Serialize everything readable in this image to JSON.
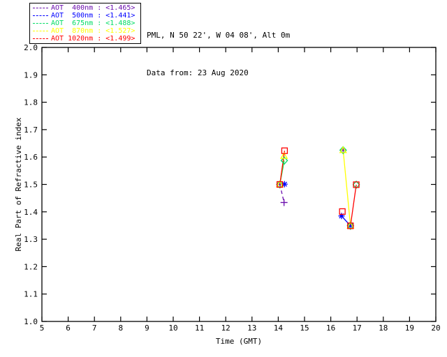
{
  "header": {
    "line1": "PML, N 50 22', W 04 08', Alt 0m",
    "line2": "Data from: 23 Aug 2020"
  },
  "legend": {
    "position": "top-left",
    "items": [
      {
        "label": "AOT  400nm : <1.465>",
        "color": "#6A0DAD"
      },
      {
        "label": "AOT  500nm : <1.441>",
        "color": "#0000FF"
      },
      {
        "label": "AOT  675nm : <1.488>",
        "color": "#00DC64"
      },
      {
        "label": "AOT  870nm : <1.527>",
        "color": "#FFFF00"
      },
      {
        "label": "AOT 1020nm : <1.499>",
        "color": "#FF0000"
      }
    ]
  },
  "chart_data": {
    "type": "line",
    "title": "",
    "xlabel": "Time (GMT)",
    "ylabel": "Real Part of Refractive index",
    "xlim": [
      5,
      20
    ],
    "ylim": [
      1.0,
      2.0
    ],
    "xticks": [
      "5",
      "6",
      "7",
      "8",
      "9",
      "10",
      "11",
      "12",
      "13",
      "14",
      "15",
      "16",
      "17",
      "18",
      "19",
      "20"
    ],
    "yticks": [
      "1.0",
      "1.1",
      "1.2",
      "1.3",
      "1.4",
      "1.5",
      "1.6",
      "1.7",
      "1.8",
      "1.9",
      "2.0"
    ],
    "grid": false,
    "frame_color": "#000000",
    "series": [
      {
        "name": "AOT 400nm",
        "mean_value_label": "<1.465>",
        "color": "#6A0DAD",
        "marker": "plus",
        "linestyle": "dashed",
        "runs": [
          [
            [
              14.06,
              1.5
            ],
            [
              14.22,
              1.434
            ]
          ],
          [
            [
              16.47,
              1.625
            ]
          ]
        ]
      },
      {
        "name": "AOT 500nm",
        "mean_value_label": "<1.441>",
        "color": "#0000FF",
        "marker": "asterisk",
        "linestyle": "solid",
        "runs": [
          [
            [
              14.24,
              1.501
            ]
          ],
          [
            [
              16.41,
              1.385
            ],
            [
              16.74,
              1.35
            ]
          ]
        ]
      },
      {
        "name": "AOT 675nm",
        "mean_value_label": "<1.488>",
        "color": "#00DC64",
        "marker": "diamond",
        "linestyle": "solid",
        "runs": [
          [
            [
              14.06,
              1.5
            ],
            [
              14.23,
              1.587
            ]
          ],
          [
            [
              16.47,
              1.625
            ]
          ],
          [
            [
              16.75,
              1.349
            ]
          ],
          [
            [
              16.97,
              1.499
            ]
          ]
        ]
      },
      {
        "name": "AOT 870nm",
        "mean_value_label": "<1.527>",
        "color": "#FFFF00",
        "marker": "triangle",
        "linestyle": "solid",
        "runs": [
          [
            [
              14.06,
              1.5
            ],
            [
              14.22,
              1.604
            ]
          ],
          [
            [
              16.47,
              1.625
            ],
            [
              16.75,
              1.349
            ]
          ]
        ]
      },
      {
        "name": "AOT 1020nm",
        "mean_value_label": "<1.499>",
        "color": "#FF0000",
        "marker": "square",
        "linestyle": "solid",
        "runs": [
          [
            [
              14.06,
              1.5
            ],
            [
              14.24,
              1.623
            ]
          ],
          [
            [
              16.44,
              1.401
            ]
          ],
          [
            [
              16.75,
              1.349
            ],
            [
              16.97,
              1.499
            ]
          ]
        ]
      }
    ]
  }
}
